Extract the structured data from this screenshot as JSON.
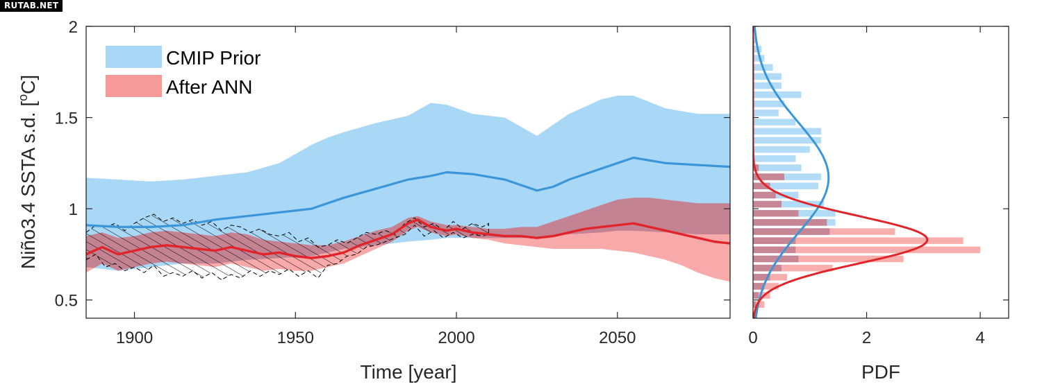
{
  "watermark": "RUTAB.NET",
  "colors": {
    "prior_fill": "#a9d7f6",
    "prior_line": "#3a96d8",
    "post_fill": "#f79a9a",
    "post_line": "#e0242a",
    "overlap_fill": "#c38393",
    "axis": "#262626"
  },
  "chart_data": [
    {
      "type": "area",
      "xlabel": "Time [year]",
      "ylabel": "Niño3.4 SSTA s.d. [",
      "ylabel_sup": "o",
      "ylabel_end": "C]",
      "xlim": [
        1885,
        2085
      ],
      "ylim": [
        0.4,
        2.0
      ],
      "xticks": [
        1900,
        1950,
        2000,
        2050
      ],
      "xtick_labels": [
        "1900",
        "1950",
        "2000",
        "2050"
      ],
      "yticks": [
        0.5,
        1,
        1.5,
        2
      ],
      "ytick_labels": [
        "0.5",
        "1",
        "1.5",
        "2"
      ],
      "grid": false,
      "legend_position": "top-left",
      "series": [
        {
          "name": "CMIP Prior",
          "x": [
            1885,
            1895,
            1905,
            1915,
            1925,
            1935,
            1945,
            1955,
            1960,
            1965,
            1975,
            1985,
            1992,
            1997,
            2005,
            2015,
            2020,
            2025,
            2030,
            2035,
            2045,
            2050,
            2055,
            2065,
            2075,
            2085
          ],
          "median": [
            0.91,
            0.9,
            0.9,
            0.91,
            0.94,
            0.96,
            0.98,
            1.0,
            1.03,
            1.06,
            1.11,
            1.16,
            1.18,
            1.2,
            1.19,
            1.16,
            1.13,
            1.1,
            1.12,
            1.16,
            1.22,
            1.25,
            1.28,
            1.25,
            1.24,
            1.23
          ],
          "upper": [
            1.17,
            1.16,
            1.15,
            1.16,
            1.18,
            1.2,
            1.25,
            1.35,
            1.39,
            1.42,
            1.47,
            1.51,
            1.58,
            1.57,
            1.52,
            1.5,
            1.45,
            1.4,
            1.46,
            1.52,
            1.6,
            1.62,
            1.62,
            1.55,
            1.52,
            1.52
          ],
          "lower": [
            0.68,
            0.66,
            0.68,
            0.7,
            0.7,
            0.72,
            0.73,
            0.74,
            0.76,
            0.78,
            0.8,
            0.82,
            0.83,
            0.84,
            0.84,
            0.84,
            0.84,
            0.84,
            0.85,
            0.86,
            0.87,
            0.88,
            0.88,
            0.87,
            0.86,
            0.86
          ]
        },
        {
          "name": "After ANN",
          "x": [
            1885,
            1890,
            1895,
            1900,
            1905,
            1910,
            1915,
            1920,
            1925,
            1930,
            1935,
            1940,
            1945,
            1950,
            1955,
            1960,
            1965,
            1970,
            1975,
            1980,
            1985,
            1988,
            1992,
            1997,
            2000,
            2005,
            2010,
            2015,
            2020,
            2025,
            2030,
            2035,
            2040,
            2045,
            2050,
            2055,
            2060,
            2065,
            2070,
            2075,
            2080,
            2085
          ],
          "median": [
            0.75,
            0.79,
            0.75,
            0.77,
            0.79,
            0.8,
            0.79,
            0.78,
            0.77,
            0.79,
            0.77,
            0.75,
            0.76,
            0.74,
            0.73,
            0.74,
            0.76,
            0.8,
            0.83,
            0.86,
            0.92,
            0.94,
            0.9,
            0.88,
            0.89,
            0.87,
            0.86,
            0.85,
            0.85,
            0.84,
            0.85,
            0.87,
            0.89,
            0.9,
            0.91,
            0.92,
            0.9,
            0.88,
            0.86,
            0.84,
            0.82,
            0.81
          ],
          "upper": [
            0.85,
            0.87,
            0.84,
            0.85,
            0.87,
            0.88,
            0.87,
            0.86,
            0.85,
            0.87,
            0.86,
            0.83,
            0.82,
            0.81,
            0.8,
            0.8,
            0.82,
            0.85,
            0.88,
            0.9,
            0.95,
            0.96,
            0.93,
            0.91,
            0.91,
            0.9,
            0.89,
            0.89,
            0.9,
            0.9,
            0.93,
            0.96,
            0.99,
            1.02,
            1.05,
            1.06,
            1.06,
            1.05,
            1.04,
            1.03,
            1.03,
            1.03
          ],
          "lower": [
            0.65,
            0.7,
            0.66,
            0.68,
            0.7,
            0.71,
            0.7,
            0.69,
            0.68,
            0.7,
            0.68,
            0.66,
            0.67,
            0.66,
            0.66,
            0.68,
            0.7,
            0.74,
            0.78,
            0.82,
            0.88,
            0.9,
            0.87,
            0.85,
            0.86,
            0.84,
            0.83,
            0.81,
            0.8,
            0.79,
            0.78,
            0.78,
            0.78,
            0.78,
            0.77,
            0.76,
            0.74,
            0.72,
            0.69,
            0.65,
            0.62,
            0.6
          ]
        }
      ],
      "observations": {
        "x": [
          1885,
          1888,
          1891,
          1894,
          1897,
          1900,
          1903,
          1906,
          1909,
          1912,
          1915,
          1918,
          1921,
          1924,
          1927,
          1930,
          1933,
          1936,
          1939,
          1942,
          1945,
          1948,
          1951,
          1954,
          1957,
          1960,
          1963,
          1966,
          1969,
          1972,
          1975,
          1978,
          1981,
          1984,
          1987,
          1990,
          1993,
          1996,
          1999,
          2002,
          2005,
          2008,
          2010
        ],
        "upper": [
          0.87,
          0.91,
          0.9,
          0.92,
          0.88,
          0.92,
          0.95,
          0.97,
          0.93,
          0.95,
          0.92,
          0.94,
          0.91,
          0.93,
          0.88,
          0.91,
          0.9,
          0.87,
          0.89,
          0.86,
          0.85,
          0.87,
          0.82,
          0.84,
          0.79,
          0.8,
          0.83,
          0.81,
          0.84,
          0.87,
          0.86,
          0.88,
          0.86,
          0.92,
          0.95,
          0.9,
          0.92,
          0.88,
          0.93,
          0.89,
          0.92,
          0.9,
          0.92
        ],
        "lower": [
          0.72,
          0.75,
          0.68,
          0.7,
          0.66,
          0.68,
          0.65,
          0.69,
          0.63,
          0.65,
          0.63,
          0.66,
          0.62,
          0.65,
          0.61,
          0.64,
          0.62,
          0.66,
          0.63,
          0.66,
          0.64,
          0.67,
          0.63,
          0.66,
          0.62,
          0.69,
          0.7,
          0.74,
          0.75,
          0.79,
          0.8,
          0.82,
          0.84,
          0.86,
          0.91,
          0.85,
          0.88,
          0.84,
          0.87,
          0.84,
          0.86,
          0.85,
          0.86
        ]
      }
    },
    {
      "type": "bar",
      "xlabel": "PDF",
      "xlim": [
        0,
        4.5
      ],
      "xticks": [
        0,
        2,
        4
      ],
      "xtick_labels": [
        "0",
        "2",
        "4"
      ],
      "ylim": [
        0.4,
        2.0
      ],
      "bin_width": 0.05,
      "bin_centers": [
        0.475,
        0.525,
        0.575,
        0.625,
        0.675,
        0.725,
        0.775,
        0.825,
        0.875,
        0.925,
        0.975,
        1.025,
        1.075,
        1.125,
        1.175,
        1.225,
        1.275,
        1.325,
        1.375,
        1.425,
        1.475,
        1.525,
        1.575,
        1.625,
        1.675,
        1.725,
        1.775,
        1.825,
        1.875,
        1.925
      ],
      "prior_hist": [
        0.05,
        0.1,
        0.2,
        0.3,
        0.5,
        0.8,
        0.75,
        0.75,
        1.35,
        1.45,
        1.45,
        1.25,
        0.8,
        1.15,
        1.2,
        0.85,
        0.75,
        1.0,
        1.2,
        1.2,
        0.75,
        0.45,
        0.55,
        0.85,
        0.5,
        0.5,
        0.35,
        0.2,
        0.15,
        0.05
      ],
      "post_hist": [
        0.2,
        0.3,
        0.45,
        0.6,
        1.4,
        2.65,
        4.0,
        3.7,
        2.5,
        1.3,
        0.8,
        0.5,
        0.4,
        0.3,
        0.55,
        0.1,
        0.02,
        0,
        0,
        0,
        0,
        0,
        0,
        0,
        0,
        0,
        0,
        0,
        0,
        0
      ],
      "prior_fit": {
        "mean": 1.17,
        "sd": 0.3
      },
      "post_fit": {
        "mean": 0.83,
        "sd": 0.13
      }
    }
  ],
  "legend": [
    {
      "label": "CMIP Prior"
    },
    {
      "label": "After ANN"
    }
  ]
}
